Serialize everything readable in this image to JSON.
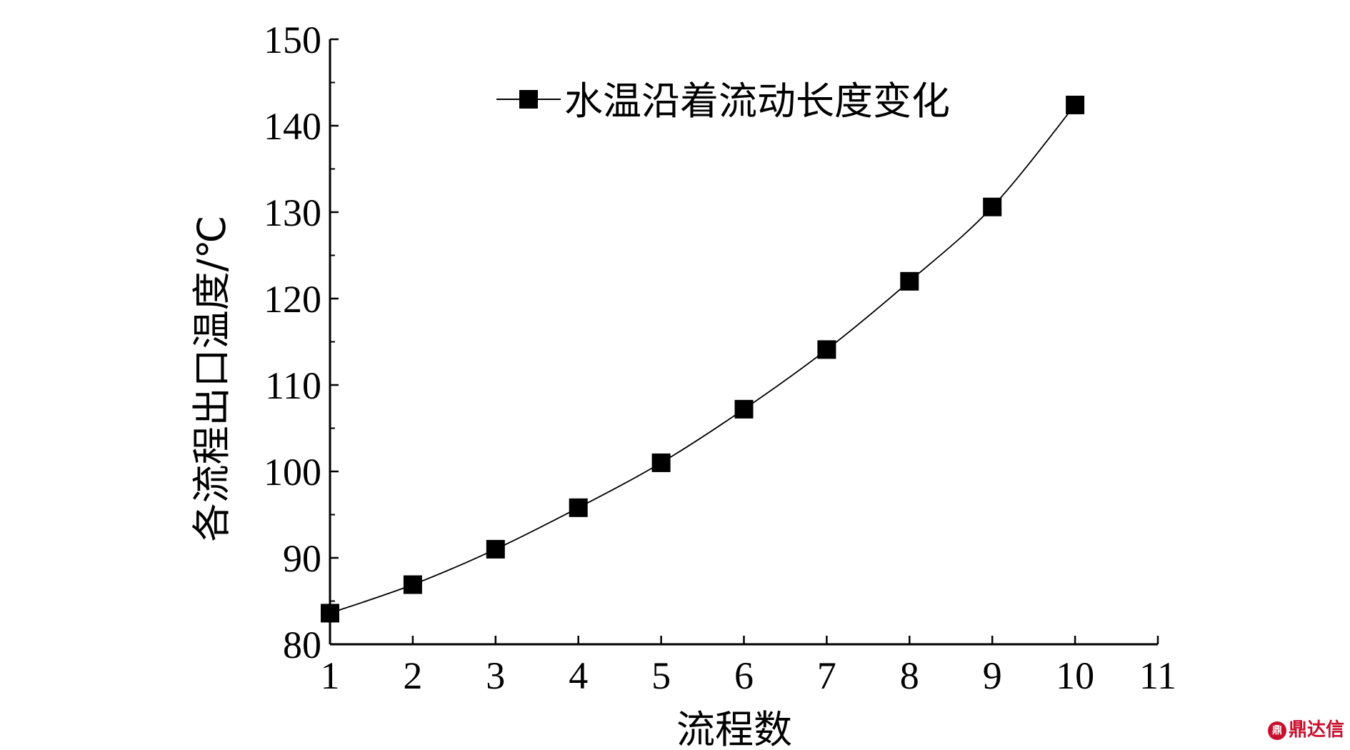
{
  "chart_data": {
    "type": "line",
    "x": [
      1,
      2,
      3,
      4,
      5,
      6,
      7,
      8,
      9,
      10
    ],
    "series": [
      {
        "name": "水温沿着流动长度变化",
        "values": [
          83.6,
          86.9,
          91.0,
          95.8,
          101.0,
          107.2,
          114.1,
          122.0,
          130.6,
          142.4
        ],
        "marker": "square",
        "color": "#000000"
      }
    ],
    "xlabel": "流程数",
    "ylabel": "各流程出口温度/℃",
    "xlim": [
      1,
      11
    ],
    "ylim": [
      80,
      150
    ],
    "xticks": [
      "1",
      "2",
      "3",
      "4",
      "5",
      "6",
      "7",
      "8",
      "9",
      "10",
      "11"
    ],
    "yticks": [
      "80",
      "90",
      "100",
      "110",
      "120",
      "130",
      "140",
      "150"
    ],
    "grid": false,
    "legend_position": "top-right"
  },
  "watermark": {
    "logo_text": "鼎",
    "text": "鼎达信"
  }
}
